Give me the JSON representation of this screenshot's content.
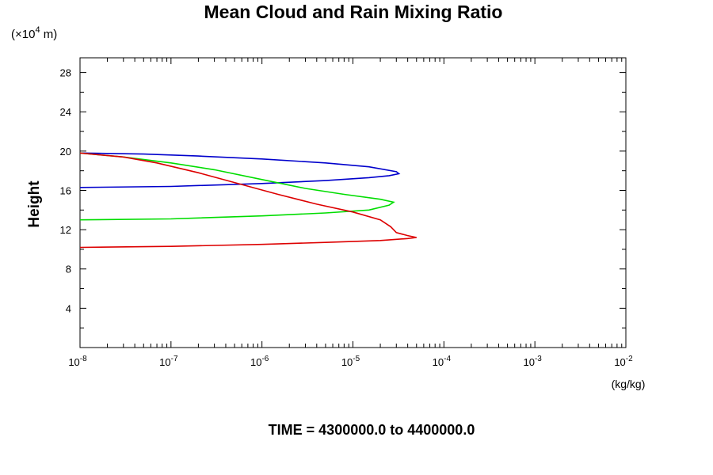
{
  "chart_data": {
    "type": "line",
    "title": "Mean Cloud and Rain Mixing Ratio",
    "ylabel": "Height",
    "y_scale_label": "(×10",
    "y_scale_exp": "4",
    "y_scale_unit": " m)",
    "x_unit_label": "(kg/kg)",
    "footer": "TIME = 4300000.0 to 4400000.0",
    "x_scale": "log",
    "xlim": [
      1e-08,
      0.01
    ],
    "ylim": [
      0,
      29.5
    ],
    "x_ticks": [
      {
        "base": "10",
        "exp": "-8",
        "value": 1e-08
      },
      {
        "base": "10",
        "exp": "-7",
        "value": 1e-07
      },
      {
        "base": "10",
        "exp": "-6",
        "value": 1e-06
      },
      {
        "base": "10",
        "exp": "-5",
        "value": 1e-05
      },
      {
        "base": "10",
        "exp": "-4",
        "value": 0.0001
      },
      {
        "base": "10",
        "exp": "-3",
        "value": 0.001
      },
      {
        "base": "10",
        "exp": "-2",
        "value": 0.01
      }
    ],
    "y_ticks": [
      {
        "label": "4",
        "value": 4
      },
      {
        "label": "8",
        "value": 8
      },
      {
        "label": "12",
        "value": 12
      },
      {
        "label": "16",
        "value": 16
      },
      {
        "label": "20",
        "value": 20
      },
      {
        "label": "24",
        "value": 24
      },
      {
        "label": "28",
        "value": 28
      }
    ],
    "y_minor_ticks": [
      2,
      6,
      10,
      14,
      18,
      22,
      26
    ],
    "grid": false,
    "series": [
      {
        "color": "#0000cc",
        "points": [
          [
            1e-08,
            16.3
          ],
          [
            1e-07,
            16.4
          ],
          [
            1e-06,
            16.7
          ],
          [
            5e-06,
            17.0
          ],
          [
            1.5e-05,
            17.3
          ],
          [
            2.5e-05,
            17.5
          ],
          [
            3.2e-05,
            17.7
          ],
          [
            3e-05,
            17.9
          ],
          [
            1.5e-05,
            18.4
          ],
          [
            5e-06,
            18.8
          ],
          [
            1e-06,
            19.2
          ],
          [
            2e-07,
            19.5
          ],
          [
            5e-08,
            19.7
          ],
          [
            1e-08,
            19.8
          ]
        ]
      },
      {
        "color": "#00dd00",
        "points": [
          [
            1e-08,
            13.0
          ],
          [
            1e-07,
            13.1
          ],
          [
            1e-06,
            13.4
          ],
          [
            5e-06,
            13.7
          ],
          [
            1.5e-05,
            14.0
          ],
          [
            2.5e-05,
            14.5
          ],
          [
            2.8e-05,
            14.8
          ],
          [
            2e-05,
            15.1
          ],
          [
            8e-06,
            15.6
          ],
          [
            3e-06,
            16.2
          ],
          [
            1e-06,
            17.1
          ],
          [
            3e-07,
            18.1
          ],
          [
            1e-07,
            18.8
          ],
          [
            3e-08,
            19.4
          ],
          [
            1e-08,
            19.8
          ]
        ]
      },
      {
        "color": "#dd0000",
        "points": [
          [
            1e-08,
            10.2
          ],
          [
            1e-07,
            10.3
          ],
          [
            1e-06,
            10.5
          ],
          [
            5e-06,
            10.7
          ],
          [
            2e-05,
            10.9
          ],
          [
            4e-05,
            11.1
          ],
          [
            5e-05,
            11.2
          ],
          [
            4e-05,
            11.4
          ],
          [
            3e-05,
            11.7
          ],
          [
            2.6e-05,
            12.3
          ],
          [
            2e-05,
            13.0
          ],
          [
            1e-05,
            13.8
          ],
          [
            4e-06,
            14.6
          ],
          [
            1.5e-06,
            15.6
          ],
          [
            5e-07,
            16.8
          ],
          [
            2e-07,
            17.8
          ],
          [
            7e-08,
            18.8
          ],
          [
            3e-08,
            19.4
          ],
          [
            1e-08,
            19.8
          ]
        ]
      }
    ]
  }
}
